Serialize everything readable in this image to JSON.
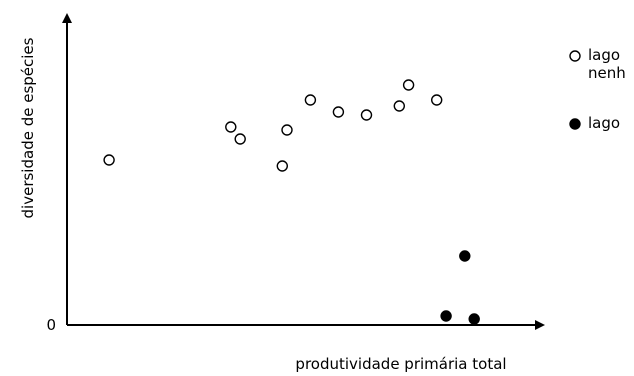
{
  "chart_data": {
    "type": "scatter",
    "xlabel": "produtividade primária total",
    "ylabel": "diversidade de espécies",
    "y_tick_labels": [
      "0"
    ],
    "grid": false,
    "legend_placement": "right",
    "series": [
      {
        "name": "lago nenh",
        "marker": "open-circle",
        "color": "#000000",
        "points": [
          {
            "x": 0.09,
            "y": 0.55
          },
          {
            "x": 0.35,
            "y": 0.66
          },
          {
            "x": 0.37,
            "y": 0.62
          },
          {
            "x": 0.46,
            "y": 0.53
          },
          {
            "x": 0.47,
            "y": 0.65
          },
          {
            "x": 0.52,
            "y": 0.75
          },
          {
            "x": 0.58,
            "y": 0.71
          },
          {
            "x": 0.64,
            "y": 0.7
          },
          {
            "x": 0.71,
            "y": 0.73
          },
          {
            "x": 0.73,
            "y": 0.8
          },
          {
            "x": 0.79,
            "y": 0.75
          }
        ]
      },
      {
        "name": "lago",
        "marker": "filled-circle",
        "color": "#000000",
        "points": [
          {
            "x": 0.81,
            "y": 0.03
          },
          {
            "x": 0.85,
            "y": 0.23
          },
          {
            "x": 0.87,
            "y": 0.02
          }
        ]
      }
    ]
  }
}
